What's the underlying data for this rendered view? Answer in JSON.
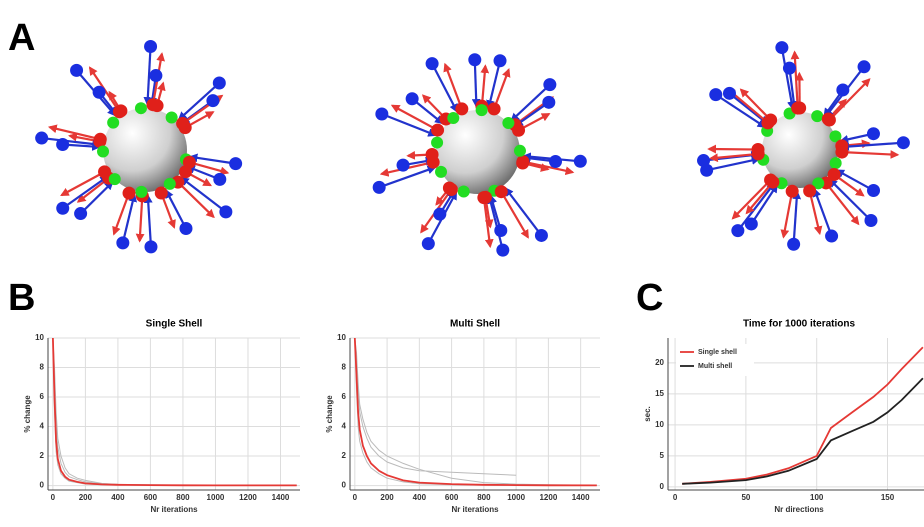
{
  "panel_labels": [
    "A",
    "B",
    "C"
  ],
  "chart_data": [
    {
      "type": "line",
      "title": "Single Shell",
      "xlabel": "Nr iterations",
      "ylabel": "% change",
      "x": [
        0,
        10,
        20,
        30,
        50,
        75,
        100,
        150,
        200,
        300,
        400,
        600,
        800,
        1000,
        1200,
        1500
      ],
      "xlim": [
        -30,
        1520
      ],
      "ylim": [
        -0.3,
        10
      ],
      "xticks": [
        0,
        200,
        400,
        600,
        800,
        1000,
        1200,
        1400
      ],
      "yticks": [
        0,
        2,
        4,
        6,
        8,
        10
      ],
      "grid": true,
      "series": [
        {
          "color": "#bbbbbb",
          "values": [
            10,
            7.5,
            4.2,
            2.6,
            1.5,
            0.9,
            0.6,
            0.4,
            0.25,
            0.12,
            0.08,
            0.05,
            0.03,
            0.02,
            0.02,
            0.01
          ]
        },
        {
          "color": "#bbbbbb",
          "values": [
            10,
            5,
            2.3,
            1.4,
            0.8,
            0.5,
            0.3,
            0.2,
            0.1,
            0.06,
            0.04,
            0.02,
            0.01,
            0.01,
            0.01,
            0.01
          ]
        },
        {
          "color": "#bbbbbb",
          "values": [
            10,
            8,
            5,
            3.2,
            2,
            1.2,
            0.8,
            0.5,
            0.35,
            0.15,
            0.08,
            0.04,
            0.03,
            0.02,
            0.01,
            0.01
          ]
        },
        {
          "color": "#e53935",
          "values": [
            10,
            6,
            3,
            1.8,
            1,
            0.6,
            0.4,
            0.25,
            0.15,
            0.08,
            0.05,
            0.03,
            0.02,
            0.01,
            0.01,
            0.01
          ]
        }
      ]
    },
    {
      "type": "line",
      "title": "Multi Shell",
      "xlabel": "Nr iterations",
      "ylabel": "% change",
      "x": [
        0,
        10,
        20,
        30,
        50,
        75,
        100,
        150,
        200,
        300,
        400,
        600,
        800,
        1000,
        1200,
        1500
      ],
      "xlim": [
        -30,
        1520
      ],
      "ylim": [
        -0.3,
        10
      ],
      "xticks": [
        0,
        200,
        400,
        600,
        800,
        1000,
        1200,
        1400
      ],
      "yticks": [
        0,
        2,
        4,
        6,
        8,
        10
      ],
      "grid": true,
      "series": [
        {
          "color": "#bbbbbb",
          "values": [
            10,
            8.5,
            6.5,
            5,
            4,
            3.2,
            2.6,
            2,
            1.6,
            1.2,
            1,
            0.9,
            0.8,
            0.7,
            null,
            null
          ]
        },
        {
          "color": "#bbbbbb",
          "values": [
            10,
            6.5,
            4,
            3,
            2.2,
            1.6,
            1.2,
            0.8,
            0.5,
            0.25,
            0.12,
            0.06,
            0.03,
            0.02,
            0.01,
            0.01
          ]
        },
        {
          "color": "#bbbbbb",
          "values": [
            10,
            9,
            7,
            5.5,
            4.5,
            3.6,
            3,
            2.4,
            2,
            1.5,
            1.1,
            0.5,
            0.2,
            0.1,
            0.05,
            0.02
          ]
        },
        {
          "color": "#e53935",
          "values": [
            10,
            7.5,
            5,
            3.8,
            2.7,
            2,
            1.5,
            1,
            0.7,
            0.35,
            0.2,
            0.1,
            0.05,
            0.03,
            0.02,
            0.01
          ]
        }
      ]
    },
    {
      "type": "line",
      "title": "Time for 1000 iterations",
      "xlabel": "Nr directions",
      "ylabel": "sec.",
      "x": [
        5,
        25,
        50,
        65,
        80,
        100,
        110,
        125,
        140,
        150,
        160,
        175
      ],
      "xlim": [
        -5,
        180
      ],
      "ylim": [
        -0.5,
        24
      ],
      "xticks": [
        0,
        50,
        100,
        150
      ],
      "yticks": [
        0,
        5,
        10,
        15,
        20
      ],
      "grid": true,
      "legend": "upper-left",
      "series": [
        {
          "name": "Single shell",
          "color": "#e53935",
          "values": [
            0.5,
            0.8,
            1.3,
            2,
            3,
            5,
            9.5,
            12,
            14.5,
            16.5,
            19,
            22.5
          ]
        },
        {
          "name": "Multi shell",
          "color": "#222222",
          "values": [
            0.5,
            0.7,
            1.1,
            1.7,
            2.6,
            4.5,
            7.5,
            9,
            10.5,
            12,
            14,
            17.5
          ]
        }
      ]
    }
  ]
}
